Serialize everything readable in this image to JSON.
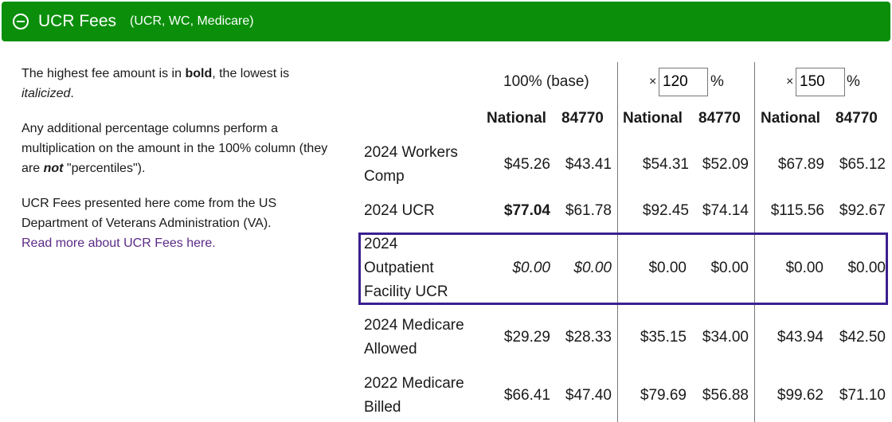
{
  "header": {
    "title": "UCR Fees",
    "subtitle": "(UCR, WC, Medicare)"
  },
  "info": {
    "p1_a": "The highest fee amount is in ",
    "p1_bold": "bold",
    "p1_b": ", the lowest is ",
    "p1_italic": "italicized",
    "p1_c": ".",
    "p2_a": "Any additional percentage columns perform a multiplication on the amount in the 100% column (they are ",
    "p2_em": "not",
    "p2_b": " \"percentiles\").",
    "p3": "UCR Fees presented here come from the US Department of Veterans Administration (VA).",
    "link": "Read more about UCR Fees here."
  },
  "columns": {
    "base_label": "100% (base)",
    "times": "×",
    "pct_sign": "%",
    "mult1_value": "120",
    "mult2_value": "150",
    "national": "National",
    "zip": "84770"
  },
  "rows": [
    {
      "label": "2024 Workers Comp",
      "values": [
        "$45.26",
        "$43.41",
        "$54.31",
        "$52.09",
        "$67.89",
        "$65.12"
      ]
    },
    {
      "label": "2024 UCR",
      "values": [
        "$77.04",
        "$61.78",
        "$92.45",
        "$74.14",
        "$115.56",
        "$92.67"
      ]
    },
    {
      "label": "2024 Outpatient Facility UCR",
      "values": [
        "$0.00",
        "$0.00",
        "$0.00",
        "$0.00",
        "$0.00",
        "$0.00"
      ]
    },
    {
      "label": "2024 Medicare Allowed",
      "values": [
        "$29.29",
        "$28.33",
        "$35.15",
        "$34.00",
        "$43.94",
        "$42.50"
      ]
    },
    {
      "label": "2022 Medicare Billed",
      "values": [
        "$66.41",
        "$47.40",
        "$79.69",
        "$56.88",
        "$99.62",
        "$71.10"
      ]
    }
  ]
}
